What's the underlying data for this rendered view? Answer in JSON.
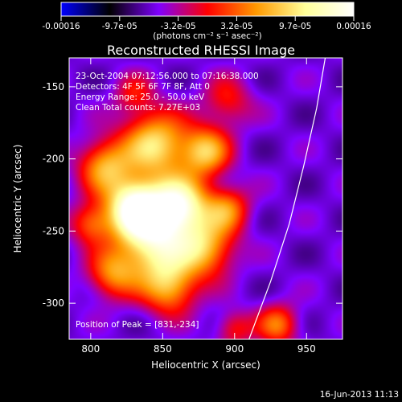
{
  "colorbar": {
    "ticks": [
      "-0.00016",
      "-9.7e-05",
      "-3.2e-05",
      "3.2e-05",
      "9.7e-05",
      "0.00016"
    ],
    "units": "(photons cm⁻² s⁻¹ asec⁻²)",
    "colormap": [
      "#0000ff",
      "#000000",
      "#7f00ff",
      "#ff0000",
      "#ff9900",
      "#ffff99",
      "#ffffff"
    ]
  },
  "chart_data": {
    "type": "heatmap",
    "title": "Reconstructed RHESSI Image",
    "xlabel": "Heliocentric X (arcsec)",
    "ylabel": "Heliocentric Y (arcsec)",
    "xlim": [
      785,
      975
    ],
    "ylim": [
      -325,
      -130
    ],
    "xticks": [
      800,
      850,
      900,
      950
    ],
    "yticks": [
      -150,
      -200,
      -250,
      -300
    ],
    "clim": [
      -0.00016,
      0.00016
    ],
    "annotations": [
      "23-Oct-2004 07:12:56.000 to 07:16:38.000",
      "Detectors: 4F 5F 6F 7F 8F, Att 0",
      "Energy Range: 25.0 - 50.0 keV",
      "Clean    Total counts: 7.27E+03"
    ],
    "peak_label": "Position of Peak = [831,-234]",
    "peak": [
      831,
      -234
    ],
    "limb_curve": [
      [
        910,
        -325
      ],
      [
        925,
        -285
      ],
      [
        938,
        -245
      ],
      [
        948,
        -205
      ],
      [
        957,
        -165
      ],
      [
        963,
        -130
      ]
    ],
    "sources": [
      {
        "x": 831,
        "y": -234,
        "amp": 1.0,
        "sigma": 14
      },
      {
        "x": 862,
        "y": -232,
        "amp": 0.85,
        "sigma": 14
      },
      {
        "x": 845,
        "y": -260,
        "amp": 0.75,
        "sigma": 18
      },
      {
        "x": 880,
        "y": -262,
        "amp": 0.55,
        "sigma": 14
      },
      {
        "x": 810,
        "y": -205,
        "amp": 0.55,
        "sigma": 13
      },
      {
        "x": 845,
        "y": -190,
        "amp": 0.7,
        "sigma": 16
      },
      {
        "x": 880,
        "y": -195,
        "amp": 0.6,
        "sigma": 12
      },
      {
        "x": 895,
        "y": -235,
        "amp": 0.45,
        "sigma": 11
      },
      {
        "x": 815,
        "y": -280,
        "amp": 0.45,
        "sigma": 12
      },
      {
        "x": 855,
        "y": -290,
        "amp": 0.5,
        "sigma": 13
      },
      {
        "x": 800,
        "y": -245,
        "amp": 0.4,
        "sigma": 10
      },
      {
        "x": 930,
        "y": -315,
        "amp": 0.45,
        "sigma": 10
      },
      {
        "x": 900,
        "y": -318,
        "amp": 0.3,
        "sigma": 9
      },
      {
        "x": 895,
        "y": -160,
        "amp": 0.3,
        "sigma": 12
      },
      {
        "x": 830,
        "y": -155,
        "amp": 0.25,
        "sigma": 10
      }
    ]
  },
  "footer": {
    "timestamp": "16-Jun-2013 11:13"
  }
}
